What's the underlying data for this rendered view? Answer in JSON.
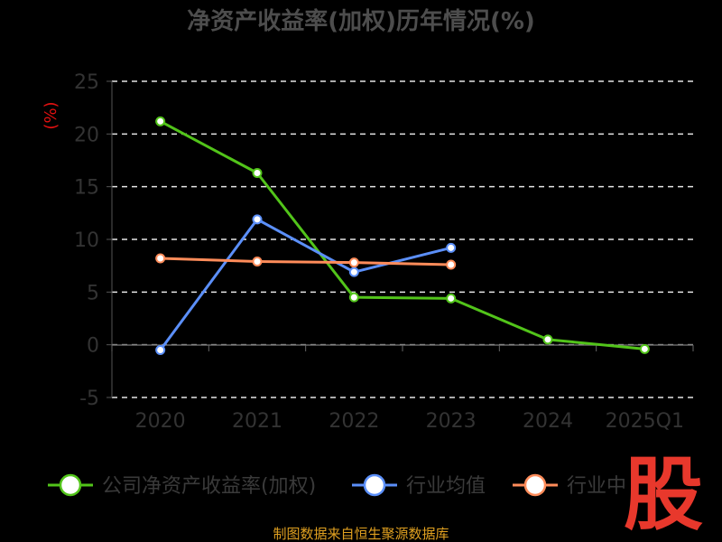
{
  "chart_data": {
    "type": "line",
    "title": "净资产收益率(加权)历年情况(%)",
    "ylabel": "(%)",
    "categories": [
      "2020",
      "2021",
      "2022",
      "2023",
      "2024",
      "2025Q1"
    ],
    "ylim": [
      -5,
      25
    ],
    "yticks": [
      25,
      20,
      15,
      10,
      5,
      0,
      -5
    ],
    "grid": true,
    "legend_position": "bottom",
    "series": [
      {
        "name": "公司净资产收益率(加权)",
        "color": "#52c41a",
        "values": [
          21.2,
          16.3,
          4.5,
          4.4,
          0.5,
          -0.4
        ]
      },
      {
        "name": "行业均值",
        "color": "#5b8ff9",
        "values": [
          -0.5,
          11.9,
          6.9,
          9.2,
          null,
          null
        ]
      },
      {
        "name": "行业中",
        "color": "#ff8c5a",
        "values": [
          8.2,
          7.9,
          7.8,
          7.6,
          null,
          null
        ]
      }
    ]
  },
  "source": "制图数据来自恒生聚源数据库",
  "logo_text": "股"
}
